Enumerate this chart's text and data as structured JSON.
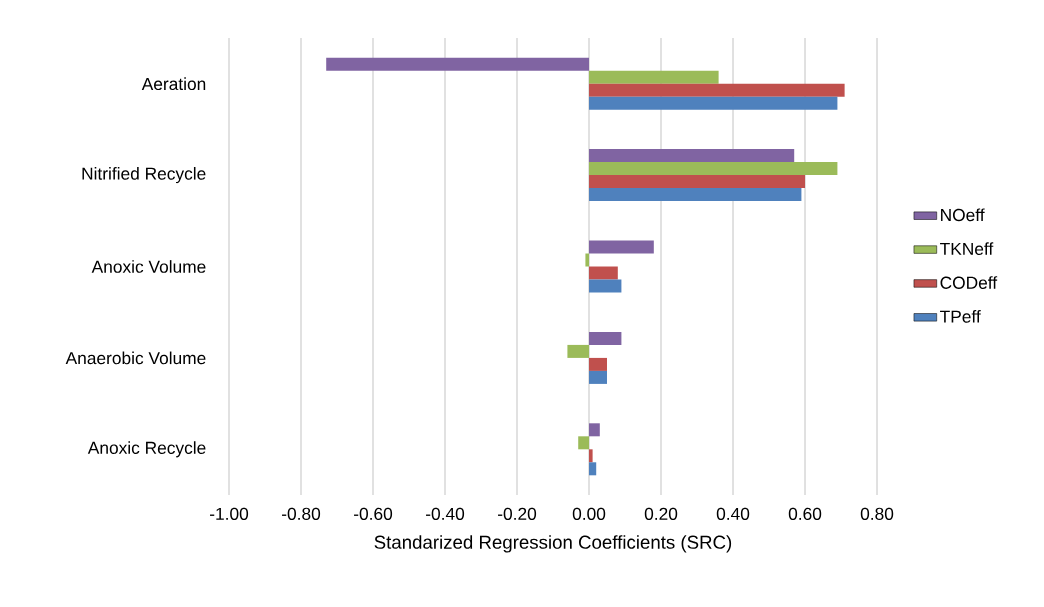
{
  "chart_data": {
    "type": "bar",
    "orientation": "horizontal",
    "xlabel": "Standarized Regression Coefficients (SRC)",
    "categories": [
      "Aeration",
      "Nitrified Recycle",
      "Anoxic Volume",
      "Anaerobic Volume",
      "Anoxic Recycle"
    ],
    "series": [
      {
        "name": "NOeff",
        "color": "#8064a2",
        "values": [
          -0.73,
          0.57,
          0.18,
          0.09,
          0.03
        ]
      },
      {
        "name": "TKNeff",
        "color": "#9bbb59",
        "values": [
          0.36,
          0.69,
          -0.01,
          -0.06,
          -0.03
        ]
      },
      {
        "name": "CODeff",
        "color": "#c0504d",
        "values": [
          0.71,
          0.6,
          0.08,
          0.05,
          0.01
        ]
      },
      {
        "name": "TPeff",
        "color": "#4f81bd",
        "values": [
          0.69,
          0.59,
          0.09,
          0.05,
          0.02
        ]
      }
    ],
    "xlim": [
      -1.0,
      0.8
    ],
    "xticks": [
      {
        "value": -1.0,
        "label": "-1.00"
      },
      {
        "value": -0.8,
        "label": "-0.80"
      },
      {
        "value": -0.6,
        "label": "-0.60"
      },
      {
        "value": -0.4,
        "label": "-0.40"
      },
      {
        "value": -0.2,
        "label": "-0.20"
      },
      {
        "value": 0.0,
        "label": "0.00"
      },
      {
        "value": 0.2,
        "label": "0.20"
      },
      {
        "value": 0.4,
        "label": "0.40"
      },
      {
        "value": 0.6,
        "label": "0.60"
      },
      {
        "value": 0.8,
        "label": "0.80"
      }
    ],
    "grid": "x",
    "legend": "right"
  }
}
